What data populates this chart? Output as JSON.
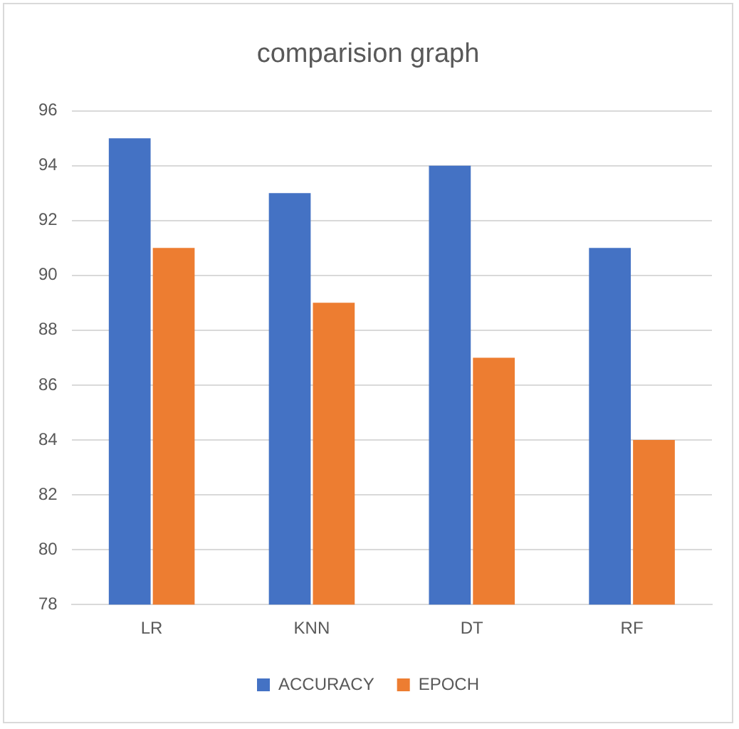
{
  "chart_data": {
    "type": "bar",
    "title": "comparision graph",
    "categories": [
      "LR",
      "KNN",
      "DT",
      "RF"
    ],
    "series": [
      {
        "name": "ACCURACY",
        "color": "#4472c4",
        "values": [
          95,
          93,
          94,
          91
        ]
      },
      {
        "name": "EPOCH",
        "color": "#ed7d31",
        "values": [
          91,
          89,
          87,
          84
        ]
      }
    ],
    "ylim": [
      78,
      96
    ],
    "yticks": [
      78,
      80,
      82,
      84,
      86,
      88,
      90,
      92,
      94,
      96
    ],
    "grid": "y",
    "legend": "bottom"
  }
}
